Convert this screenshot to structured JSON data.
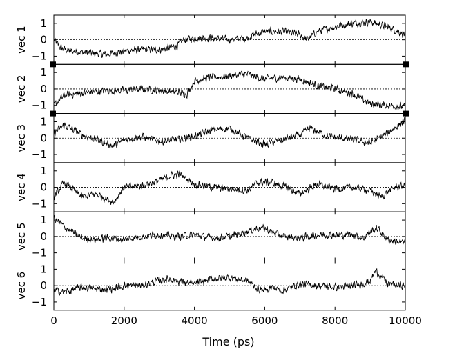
{
  "chart_data": {
    "type": "line",
    "xlabel": "Time (ps)",
    "xlim": [
      0,
      10000
    ],
    "xticks": [
      0,
      2000,
      4000,
      6000,
      8000,
      10000
    ],
    "xtick_labels": [
      "0",
      "2000",
      "4000",
      "6000",
      "8000",
      "10000"
    ],
    "ylim": [
      -1.5,
      1.5
    ],
    "yticks": [
      -1,
      0,
      1
    ],
    "ytick_labels": [
      "−1",
      "0",
      "1"
    ],
    "zero_line": "dashed",
    "grid": false,
    "line_color": "#000000",
    "panels": [
      {
        "ylabel": "vec 1",
        "x": [
          0,
          200,
          500,
          1000,
          1500,
          2000,
          2500,
          3000,
          3500,
          3700,
          4000,
          4500,
          5000,
          5500,
          5800,
          6000,
          6500,
          7000,
          7200,
          7500,
          8000,
          8500,
          9000,
          9500,
          10000
        ],
        "y": [
          0.0,
          -0.5,
          -0.7,
          -0.8,
          -0.9,
          -0.7,
          -0.6,
          -0.6,
          -0.4,
          0.0,
          0.1,
          0.1,
          0.0,
          0.1,
          0.4,
          0.5,
          0.5,
          0.3,
          0.0,
          0.5,
          0.8,
          1.0,
          1.1,
          0.8,
          0.3
        ]
      },
      {
        "ylabel": "vec 2",
        "x": [
          0,
          300,
          1000,
          1500,
          2000,
          2500,
          3000,
          3500,
          3800,
          4000,
          4500,
          5000,
          5500,
          6000,
          6500,
          7000,
          7500,
          8000,
          8500,
          9000,
          9500,
          10000
        ],
        "y": [
          -1.0,
          -0.4,
          -0.2,
          -0.1,
          -0.1,
          0.0,
          -0.1,
          -0.2,
          -0.3,
          0.5,
          0.7,
          0.8,
          0.9,
          0.6,
          0.7,
          0.6,
          0.2,
          0.0,
          -0.3,
          -0.9,
          -1.0,
          -1.1
        ]
      },
      {
        "ylabel": "vec 3",
        "x": [
          0,
          300,
          800,
          1200,
          1700,
          2000,
          2500,
          3000,
          3500,
          4000,
          4500,
          5000,
          5500,
          6000,
          6500,
          7000,
          7300,
          7800,
          8500,
          9000,
          9500,
          10000
        ],
        "y": [
          0.3,
          0.8,
          0.2,
          -0.1,
          -0.5,
          -0.1,
          0.1,
          -0.2,
          -0.1,
          0.1,
          0.5,
          0.6,
          0.0,
          -0.4,
          -0.1,
          0.2,
          0.6,
          0.1,
          -0.1,
          -0.3,
          0.3,
          1.1
        ]
      },
      {
        "ylabel": "vec 4",
        "x": [
          0,
          300,
          800,
          1200,
          1700,
          2000,
          2500,
          3000,
          3300,
          3600,
          4000,
          4500,
          5000,
          5500,
          5800,
          6200,
          6600,
          7000,
          7500,
          8000,
          8500,
          9000,
          9300,
          9700,
          10000
        ],
        "y": [
          -0.6,
          0.3,
          -0.6,
          -0.4,
          -0.9,
          0.0,
          0.1,
          0.4,
          0.7,
          0.8,
          0.2,
          0.0,
          -0.1,
          -0.2,
          0.3,
          0.3,
          0.0,
          -0.4,
          0.2,
          -0.1,
          0.0,
          -0.2,
          -0.6,
          0.0,
          0.1
        ]
      },
      {
        "ylabel": "vec 5",
        "x": [
          0,
          300,
          800,
          1200,
          1500,
          2000,
          2500,
          3000,
          3500,
          4000,
          4500,
          5000,
          5500,
          5800,
          6000,
          6200,
          6500,
          7000,
          7500,
          8000,
          8500,
          8800,
          9000,
          9200,
          9500,
          10000
        ],
        "y": [
          1.1,
          0.6,
          -0.1,
          -0.2,
          -0.1,
          -0.2,
          0.0,
          0.1,
          0.0,
          0.1,
          -0.1,
          0.0,
          0.3,
          0.5,
          0.5,
          0.3,
          0.0,
          -0.1,
          0.1,
          0.1,
          0.1,
          -0.1,
          0.3,
          0.5,
          -0.2,
          -0.4
        ]
      },
      {
        "ylabel": "vec 6",
        "x": [
          0,
          300,
          800,
          1200,
          1700,
          2000,
          2500,
          3000,
          3300,
          3700,
          4000,
          4500,
          5000,
          5500,
          5800,
          6000,
          6200,
          6500,
          7000,
          7500,
          8000,
          8500,
          8800,
          9000,
          9150,
          9300,
          9500,
          10000
        ],
        "y": [
          -0.3,
          -0.4,
          -0.1,
          -0.2,
          -0.2,
          0.0,
          0.0,
          0.3,
          0.4,
          0.2,
          0.1,
          0.4,
          0.5,
          0.3,
          -0.2,
          -0.3,
          -0.1,
          -0.3,
          0.1,
          0.0,
          -0.1,
          0.0,
          0.1,
          0.3,
          0.9,
          0.6,
          0.1,
          0.0
        ]
      }
    ]
  }
}
